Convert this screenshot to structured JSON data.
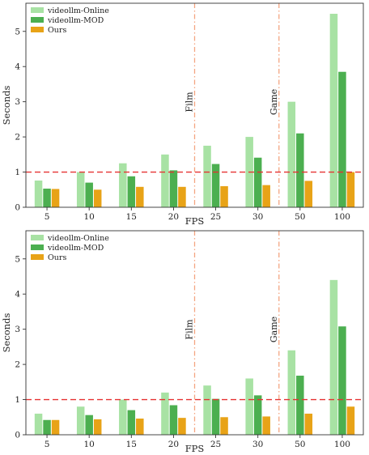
{
  "chart_data": [
    {
      "type": "bar",
      "xlabel": "FPS",
      "ylabel": "Seconds",
      "categories": [
        "5",
        "10",
        "15",
        "20",
        "25",
        "30",
        "50",
        "100"
      ],
      "ylim": [
        0,
        5.8
      ],
      "yticks": [
        0,
        1,
        2,
        3,
        4,
        5
      ],
      "series": [
        {
          "name": "videollm-Online",
          "color": "#a8e2a4",
          "values": [
            0.76,
            1.0,
            1.25,
            1.5,
            1.75,
            2.0,
            3.0,
            5.5
          ]
        },
        {
          "name": "videollm-MOD",
          "color": "#4caf50",
          "values": [
            0.53,
            0.7,
            0.88,
            1.05,
            1.23,
            1.41,
            2.1,
            3.85
          ]
        },
        {
          "name": "Ours",
          "color": "#e8a317",
          "values": [
            0.52,
            0.5,
            0.58,
            0.58,
            0.6,
            0.63,
            0.75,
            1.0
          ]
        }
      ],
      "hline": {
        "y": 1.0,
        "color": "#e63232"
      },
      "vlines": [
        {
          "after_index": 3,
          "label": "Film",
          "color": "#f4a582"
        },
        {
          "after_index": 5,
          "label": "Game",
          "color": "#f4a582"
        }
      ],
      "legend_position": "top-left",
      "grid": false
    },
    {
      "type": "bar",
      "xlabel": "FPS",
      "ylabel": "Seconds",
      "categories": [
        "5",
        "10",
        "15",
        "20",
        "25",
        "30",
        "50",
        "100"
      ],
      "ylim": [
        0,
        5.8
      ],
      "yticks": [
        0,
        1,
        2,
        3,
        4,
        5
      ],
      "series": [
        {
          "name": "videollm-Online",
          "color": "#a8e2a4",
          "values": [
            0.6,
            0.8,
            1.0,
            1.2,
            1.4,
            1.6,
            2.4,
            4.4
          ]
        },
        {
          "name": "videollm-MOD",
          "color": "#4caf50",
          "values": [
            0.42,
            0.56,
            0.7,
            0.84,
            1.02,
            1.12,
            1.68,
            3.08
          ]
        },
        {
          "name": "Ours",
          "color": "#e8a317",
          "values": [
            0.42,
            0.44,
            0.46,
            0.48,
            0.5,
            0.52,
            0.6,
            0.8
          ]
        }
      ],
      "hline": {
        "y": 1.0,
        "color": "#e63232"
      },
      "vlines": [
        {
          "after_index": 3,
          "label": "Film",
          "color": "#f4a582"
        },
        {
          "after_index": 5,
          "label": "Game",
          "color": "#f4a582"
        }
      ],
      "legend_position": "top-left",
      "grid": false
    }
  ]
}
